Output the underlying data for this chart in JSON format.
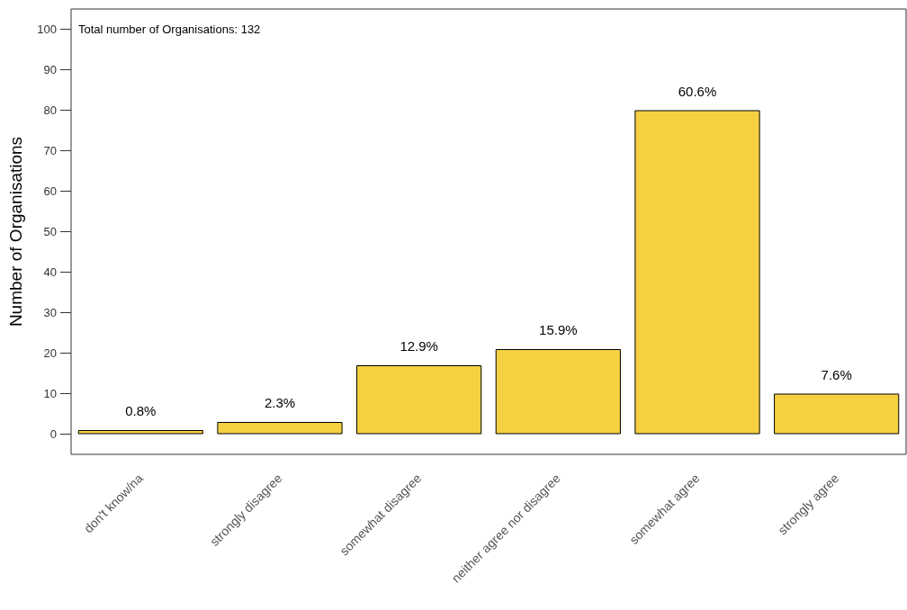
{
  "chart_data": {
    "type": "bar",
    "ylabel": "Number of Organisations",
    "annotations": [
      "Total number of Organisations: 132",
      {
        "text": "0.8%",
        "x": "don't know/na",
        "y": 1
      },
      {
        "text": "2.3%",
        "x": "strongly disagree",
        "y": 3
      },
      {
        "text": "12.9%",
        "x": "somewhat disagree",
        "y": 17
      },
      {
        "text": "15.9%",
        "x": "neither agree nor disagree",
        "y": 21
      },
      {
        "text": "60.6%",
        "x": "somewhat agree",
        "y": 80
      },
      {
        "text": "7.6%",
        "x": "strongly agree",
        "y": 10
      }
    ],
    "categories": [
      "don't know/na",
      "strongly disagree",
      "somewhat disagree",
      "neither agree nor disagree",
      "somewhat agree",
      "strongly agree"
    ],
    "values": [
      1,
      3,
      17,
      21,
      80,
      10
    ],
    "color": "#f5d142",
    "ylim": [
      -5,
      105
    ],
    "yticks": [
      0,
      10,
      20,
      30,
      40,
      50,
      60,
      70,
      80,
      90,
      100
    ],
    "grid": false
  }
}
